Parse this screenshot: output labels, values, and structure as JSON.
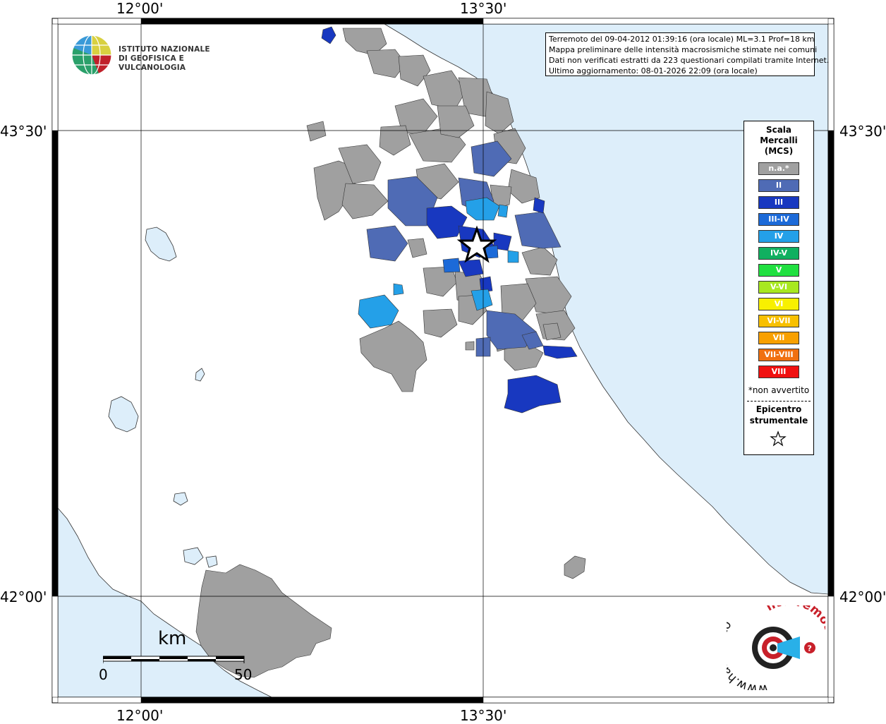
{
  "axes": {
    "top_labels": [
      "12°00'",
      "13°30'"
    ],
    "bottom_labels": [
      "12°00'",
      "13°30'"
    ],
    "left_labels": [
      "43°30'",
      "42°00'"
    ],
    "right_labels": [
      "43°30'",
      "42°00'"
    ]
  },
  "info": {
    "line1": "Terremoto del 09-04-2012 01:39:16 (ora locale) ML=3.1 Prof=18 km",
    "line2": "Mappa preliminare delle intensità macrosismiche stimate nei comuni",
    "line3": "Dati non verificati estratti da 223 questionari compilati tramite Internet.",
    "line4": "Ultimo aggiornamento: 08-01-2026 22:09 (ora locale)"
  },
  "ingv_logo": {
    "line1": "ISTITUTO NAZIONALE",
    "line2": "DI GEOFISICA E VULCANOLOGIA"
  },
  "legend": {
    "title1": "Scala",
    "title2": "Mercalli",
    "title3": "(MCS)",
    "items": [
      {
        "label": "n.a.*",
        "color": "#a0a0a0"
      },
      {
        "label": "II",
        "color": "#4f6bb5"
      },
      {
        "label": "III",
        "color": "#1838c0"
      },
      {
        "label": "III-IV",
        "color": "#1c6ad8"
      },
      {
        "label": "IV",
        "color": "#24a0e8"
      },
      {
        "label": "IV-V",
        "color": "#10b060"
      },
      {
        "label": "V",
        "color": "#20e040"
      },
      {
        "label": "V-VI",
        "color": "#a8e820"
      },
      {
        "label": "VI",
        "color": "#f8f000"
      },
      {
        "label": "VI-VII",
        "color": "#f8c000"
      },
      {
        "label": "VII",
        "color": "#f8a000"
      },
      {
        "label": "VII-VIII",
        "color": "#f07010"
      },
      {
        "label": "VIII",
        "color": "#f01010"
      }
    ],
    "note": "*non avvertito",
    "epicentre1": "Epicentro",
    "epicentre2": "strumentale"
  },
  "scale": {
    "unit": "km",
    "min": "0",
    "max": "50"
  },
  "colors": {
    "sea": "#ddeefa",
    "land": "#ffffff",
    "na": "#a0a0a0",
    "ii": "#4f6bb5",
    "iii": "#1838c0",
    "iii_iv": "#1c6ad8",
    "iv": "#24a0e8"
  },
  "hsl_logo": {
    "text_left": "www.haisentito",
    "text_right": "ilterremoto.it",
    "question": "?"
  }
}
